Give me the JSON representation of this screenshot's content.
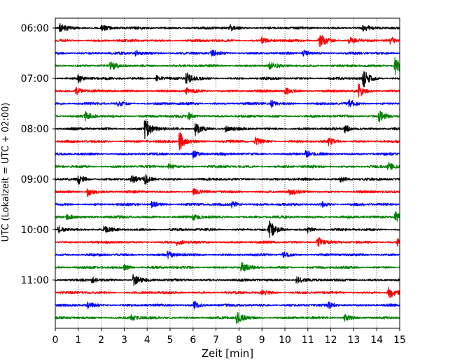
{
  "chart_data": {
    "type": "line",
    "chart_kind": "helicorder seismogram",
    "title": "",
    "xlabel": "Zeit  [min]",
    "ylabel": "UTC (Lokalzeit = UTC + 02:00)",
    "xlim": [
      0,
      15
    ],
    "x_ticks": [
      0,
      1,
      2,
      3,
      4,
      5,
      6,
      7,
      8,
      9,
      10,
      11,
      12,
      13,
      14,
      15
    ],
    "x_tick_labels": [
      "0",
      "1",
      "2",
      "3",
      "4",
      "5",
      "6",
      "7",
      "8",
      "9",
      "10",
      "11",
      "12",
      "13",
      "14",
      "15"
    ],
    "grid": "vertical dotted at each minute",
    "legend": "none",
    "y_tick_labels": [
      "06:00",
      "07:00",
      "08:00",
      "09:00",
      "10:00",
      "11:00"
    ],
    "traces_per_hour": 4,
    "minutes_per_trace": 15,
    "trace_colors": [
      "#000000",
      "#ff0000",
      "#0000ff",
      "#008000"
    ],
    "series": [
      {
        "start": "06:00",
        "color": "#000000",
        "events": [
          [
            0.2,
            1.2
          ],
          [
            2.0,
            1.0
          ],
          [
            7.6,
            0.9
          ],
          [
            13.4,
            0.8
          ]
        ]
      },
      {
        "start": "06:15",
        "color": "#ff0000",
        "events": [
          [
            11.5,
            2.6
          ],
          [
            9.0,
            0.9
          ],
          [
            12.8,
            1.0
          ],
          [
            14.6,
            0.9
          ]
        ]
      },
      {
        "start": "06:30",
        "color": "#0000ff",
        "events": [
          [
            3.5,
            0.8
          ],
          [
            6.8,
            0.8
          ],
          [
            10.8,
            0.9
          ]
        ]
      },
      {
        "start": "06:45",
        "color": "#008000",
        "events": [
          [
            2.4,
            1.1
          ],
          [
            9.3,
            1.0
          ],
          [
            14.8,
            2.8
          ]
        ]
      },
      {
        "start": "07:00",
        "color": "#000000",
        "events": [
          [
            1.0,
            1.2
          ],
          [
            5.7,
            1.8
          ],
          [
            13.4,
            2.6
          ],
          [
            4.4,
            0.8
          ]
        ]
      },
      {
        "start": "07:15",
        "color": "#ff0000",
        "events": [
          [
            0.9,
            1.1
          ],
          [
            5.7,
            0.8
          ],
          [
            10.0,
            1.1
          ],
          [
            13.2,
            1.8
          ]
        ]
      },
      {
        "start": "07:30",
        "color": "#0000ff",
        "events": [
          [
            2.7,
            0.8
          ],
          [
            9.4,
            0.9
          ],
          [
            12.8,
            0.9
          ]
        ]
      },
      {
        "start": "07:45",
        "color": "#008000",
        "events": [
          [
            1.3,
            1.1
          ],
          [
            5.8,
            0.9
          ],
          [
            14.1,
            1.8
          ]
        ]
      },
      {
        "start": "08:00",
        "color": "#000000",
        "events": [
          [
            3.9,
            3.2
          ],
          [
            6.1,
            1.8
          ],
          [
            12.6,
            1.1
          ],
          [
            7.4,
            0.8
          ]
        ]
      },
      {
        "start": "08:15",
        "color": "#ff0000",
        "events": [
          [
            5.4,
            2.8
          ],
          [
            8.7,
            1.1
          ],
          [
            11.9,
            0.9
          ]
        ]
      },
      {
        "start": "08:30",
        "color": "#0000ff",
        "events": [
          [
            6.0,
            1.0
          ],
          [
            10.9,
            0.9
          ]
        ]
      },
      {
        "start": "08:45",
        "color": "#008000",
        "events": [
          [
            4.9,
            0.8
          ],
          [
            14.5,
            1.2
          ]
        ]
      },
      {
        "start": "09:00",
        "color": "#000000",
        "events": [
          [
            1.0,
            1.3
          ],
          [
            3.3,
            1.0
          ],
          [
            3.9,
            1.2
          ],
          [
            12.4,
            0.9
          ]
        ]
      },
      {
        "start": "09:15",
        "color": "#ff0000",
        "events": [
          [
            1.4,
            1.3
          ],
          [
            6.0,
            0.8
          ],
          [
            10.2,
            0.8
          ]
        ]
      },
      {
        "start": "09:30",
        "color": "#0000ff",
        "events": [
          [
            7.7,
            1.0
          ],
          [
            11.6,
            0.9
          ],
          [
            4.2,
            0.8
          ]
        ]
      },
      {
        "start": "09:45",
        "color": "#008000",
        "events": [
          [
            0.5,
            1.0
          ],
          [
            6.0,
            0.8
          ],
          [
            14.8,
            1.8
          ]
        ]
      },
      {
        "start": "10:00",
        "color": "#000000",
        "events": [
          [
            0.1,
            1.2
          ],
          [
            9.3,
            2.6
          ],
          [
            11.0,
            0.9
          ],
          [
            2.1,
            0.8
          ]
        ]
      },
      {
        "start": "10:15",
        "color": "#ff0000",
        "events": [
          [
            11.4,
            1.8
          ],
          [
            5.3,
            0.8
          ],
          [
            14.9,
            1.0
          ]
        ]
      },
      {
        "start": "10:30",
        "color": "#0000ff",
        "events": [
          [
            4.9,
            0.9
          ],
          [
            9.9,
            0.8
          ]
        ]
      },
      {
        "start": "10:45",
        "color": "#008000",
        "events": [
          [
            8.1,
            1.3
          ],
          [
            3.0,
            0.8
          ]
        ]
      },
      {
        "start": "11:00",
        "color": "#000000",
        "events": [
          [
            3.4,
            1.8
          ],
          [
            10.5,
            1.0
          ],
          [
            1.6,
            0.8
          ]
        ]
      },
      {
        "start": "11:15",
        "color": "#ff0000",
        "events": [
          [
            14.5,
            2.0
          ],
          [
            9.0,
            0.8
          ]
        ]
      },
      {
        "start": "11:30",
        "color": "#0000ff",
        "events": [
          [
            6.0,
            1.3
          ],
          [
            1.4,
            0.8
          ],
          [
            11.9,
            0.8
          ]
        ]
      },
      {
        "start": "11:45",
        "color": "#008000",
        "events": [
          [
            7.9,
            1.6
          ],
          [
            3.3,
            0.8
          ],
          [
            12.6,
            0.9
          ]
        ]
      }
    ]
  }
}
